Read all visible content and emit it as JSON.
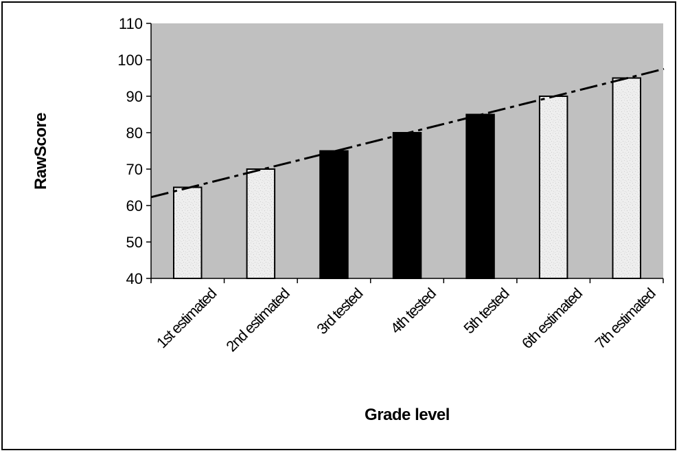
{
  "chart_data": {
    "type": "bar",
    "title": "",
    "xlabel": "Grade level",
    "ylabel": "RawScore",
    "ylim": [
      40,
      110
    ],
    "yticks": [
      40,
      50,
      60,
      70,
      80,
      90,
      100,
      110
    ],
    "grid": false,
    "legend": "none",
    "categories": [
      "1st estimated",
      "2nd estimated",
      "3rd tested",
      "4th tested",
      "5th tested",
      "6th estimated",
      "7th estimated"
    ],
    "values": [
      65,
      70,
      75,
      80,
      85,
      90,
      95
    ],
    "bar_kind": [
      "estimated",
      "estimated",
      "tested",
      "tested",
      "tested",
      "estimated",
      "estimated"
    ],
    "trendline": {
      "style": "dash-dot",
      "start_value": 62.3,
      "end_value": 97.5
    },
    "colors": {
      "plot_background": "#c0c0c0",
      "estimated_fill": "#eeeeee",
      "tested_fill": "#000000",
      "trendline": "#000000"
    }
  }
}
